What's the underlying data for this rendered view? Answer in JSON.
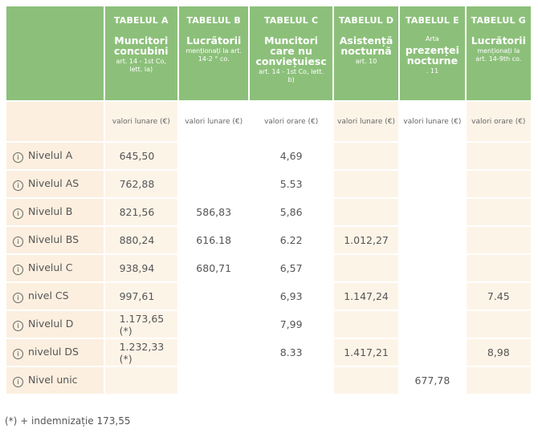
{
  "columns": [
    {
      "tab": "TABELUL A",
      "name": "Muncitori concubini",
      "sub": "art. 14 - 1st Co, lett. la)",
      "unit": "valori lunare (€)"
    },
    {
      "tab": "TABELUL B",
      "name": "Lucrătorii",
      "sub": "menționați la art. 14-2 ° co.",
      "unit": "valori lunare (€)"
    },
    {
      "tab": "TABELUL C",
      "name": "Muncitori care nu conviețuiesc",
      "sub": "art. 14 - 1st Co, lett. b)",
      "unit": "valori orare (€)"
    },
    {
      "tab": "TABELUL D",
      "name": "Asistență nocturnă",
      "sub": "art. 10",
      "unit": "valori lunare (€)"
    },
    {
      "tab": "TABELUL E",
      "pre": "Arta",
      "name": "prezenței nocturne",
      "sub": ". 11",
      "unit": "valori lunare (€)"
    },
    {
      "tab": "TABELUL G",
      "name": "Lucrătorii",
      "sub": "menționați la art. 14-9th co.",
      "unit": "valori orare (€)"
    }
  ],
  "rows": [
    {
      "label": "Nivelul A",
      "cells": [
        "645,50",
        "",
        "4,69",
        "",
        "",
        ""
      ]
    },
    {
      "label": "Nivelul AS",
      "cells": [
        "762,88",
        "",
        "5.53",
        "",
        "",
        ""
      ]
    },
    {
      "label": "Nivelul B",
      "cells": [
        "821,56",
        "586,83",
        "5,86",
        "",
        "",
        ""
      ]
    },
    {
      "label": "Nivelul BS",
      "cells": [
        "880,24",
        "616.18",
        "6.22",
        "1.012,27",
        "",
        ""
      ]
    },
    {
      "label": "Nivelul C",
      "cells": [
        "938,94",
        "680,71",
        "6,57",
        "",
        "",
        ""
      ]
    },
    {
      "label": "nivel CS",
      "cells": [
        "997,61",
        "",
        "6,93",
        "1.147,24",
        "",
        "7.45"
      ]
    },
    {
      "label": "Nivelul D",
      "cells": [
        "1.173,65 (*)",
        "",
        "7,99",
        "",
        "",
        ""
      ]
    },
    {
      "label": "nivelul DS",
      "cells": [
        "1.232,33 (*)",
        "",
        "8.33",
        "1.417,21",
        "",
        "8,98"
      ]
    },
    {
      "label": "Nivel unic",
      "cells": [
        "",
        "",
        "",
        "",
        "677,78",
        ""
      ]
    }
  ],
  "footnote": "(*) + indemnizație 173,55"
}
